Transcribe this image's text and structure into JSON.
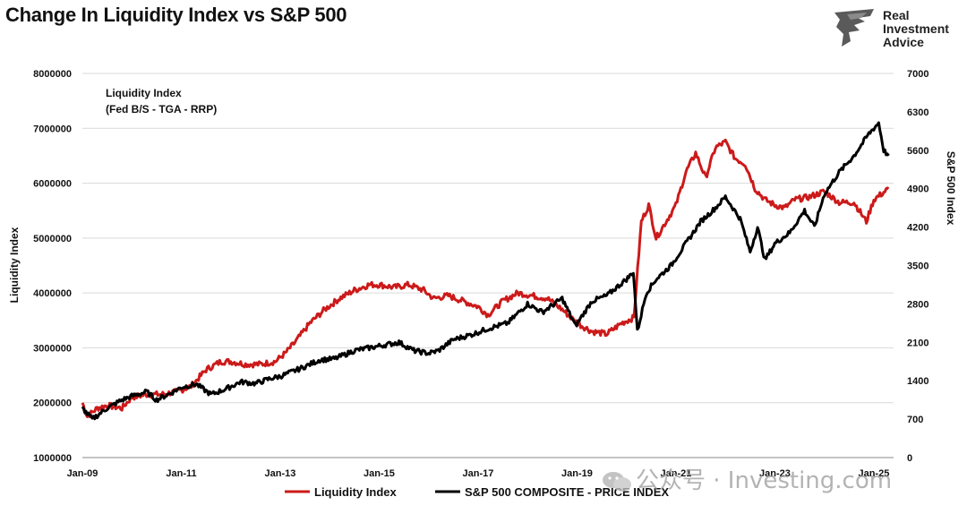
{
  "header": {
    "title": "Change In Liquidity Index vs S&P 500"
  },
  "brand": {
    "line1": "Real",
    "line2": "Investment",
    "line3": "Advice"
  },
  "watermark": {
    "text": "公众号 · Investing.com"
  },
  "colors": {
    "liquidity": "#cc1a1a",
    "sp500": "#000000",
    "axis": "#222222",
    "grid": "#d9d9d9"
  },
  "chart_data": {
    "type": "line",
    "annotation": {
      "line1": "Liquidity Index",
      "line2": "(Fed B/S - TGA - RRP)"
    },
    "ylabel": "Liquidity Index",
    "y2label": "S&P 500 Index",
    "ylim": [
      1000000,
      8000000
    ],
    "y2lim": [
      0,
      7000
    ],
    "yticks": [
      "1000000",
      "2000000",
      "3000000",
      "4000000",
      "5000000",
      "6000000",
      "7000000",
      "8000000"
    ],
    "y2ticks": [
      "0",
      "700",
      "1400",
      "2100",
      "2800",
      "3500",
      "4200",
      "4900",
      "5600",
      "6300",
      "7000"
    ],
    "xticks": [
      "Jan-09",
      "Jan-11",
      "Jan-13",
      "Jan-15",
      "Jan-17",
      "Jan-19",
      "Jan-21",
      "Jan-23",
      "Jan-25"
    ],
    "xlim": [
      2009.0,
      2025.4
    ],
    "legend": {
      "placement": "bottom"
    },
    "grid": true,
    "series": [
      {
        "name": "Liquidity Index",
        "axis": "left",
        "points": [
          [
            2009.0,
            2000000
          ],
          [
            2009.1,
            1750000
          ],
          [
            2009.3,
            1900000
          ],
          [
            2009.5,
            1950000
          ],
          [
            2009.8,
            1900000
          ],
          [
            2010.0,
            2100000
          ],
          [
            2010.3,
            2150000
          ],
          [
            2010.6,
            2150000
          ],
          [
            2010.9,
            2200000
          ],
          [
            2011.2,
            2300000
          ],
          [
            2011.5,
            2600000
          ],
          [
            2011.8,
            2750000
          ],
          [
            2012.0,
            2750000
          ],
          [
            2012.3,
            2700000
          ],
          [
            2012.6,
            2700000
          ],
          [
            2012.9,
            2750000
          ],
          [
            2013.1,
            2900000
          ],
          [
            2013.3,
            3100000
          ],
          [
            2013.6,
            3450000
          ],
          [
            2013.9,
            3700000
          ],
          [
            2014.2,
            3900000
          ],
          [
            2014.5,
            4050000
          ],
          [
            2014.8,
            4150000
          ],
          [
            2015.0,
            4150000
          ],
          [
            2015.3,
            4100000
          ],
          [
            2015.6,
            4150000
          ],
          [
            2015.9,
            4050000
          ],
          [
            2016.1,
            3900000
          ],
          [
            2016.4,
            3950000
          ],
          [
            2016.7,
            3850000
          ],
          [
            2017.0,
            3750000
          ],
          [
            2017.2,
            3600000
          ],
          [
            2017.5,
            3850000
          ],
          [
            2017.8,
            4000000
          ],
          [
            2018.1,
            3950000
          ],
          [
            2018.4,
            3900000
          ],
          [
            2018.7,
            3700000
          ],
          [
            2019.0,
            3450000
          ],
          [
            2019.3,
            3300000
          ],
          [
            2019.6,
            3250000
          ],
          [
            2019.9,
            3450000
          ],
          [
            2020.15,
            3550000
          ],
          [
            2020.3,
            5300000
          ],
          [
            2020.45,
            5600000
          ],
          [
            2020.6,
            5000000
          ],
          [
            2020.8,
            5300000
          ],
          [
            2021.0,
            5600000
          ],
          [
            2021.2,
            6200000
          ],
          [
            2021.4,
            6550000
          ],
          [
            2021.6,
            6100000
          ],
          [
            2021.8,
            6650000
          ],
          [
            2022.0,
            6750000
          ],
          [
            2022.2,
            6450000
          ],
          [
            2022.4,
            6350000
          ],
          [
            2022.6,
            5900000
          ],
          [
            2022.8,
            5700000
          ],
          [
            2023.0,
            5600000
          ],
          [
            2023.2,
            5550000
          ],
          [
            2023.4,
            5700000
          ],
          [
            2023.7,
            5750000
          ],
          [
            2024.0,
            5850000
          ],
          [
            2024.3,
            5650000
          ],
          [
            2024.6,
            5650000
          ],
          [
            2024.85,
            5300000
          ],
          [
            2025.0,
            5700000
          ],
          [
            2025.3,
            5900000
          ]
        ]
      },
      {
        "name": "S&P 500 COMPOSITE - PRICE INDEX",
        "axis": "right",
        "points": [
          [
            2009.0,
            900
          ],
          [
            2009.2,
            700
          ],
          [
            2009.5,
            900
          ],
          [
            2009.8,
            1050
          ],
          [
            2010.0,
            1120
          ],
          [
            2010.3,
            1200
          ],
          [
            2010.5,
            1050
          ],
          [
            2010.8,
            1180
          ],
          [
            2011.0,
            1280
          ],
          [
            2011.3,
            1340
          ],
          [
            2011.6,
            1150
          ],
          [
            2011.9,
            1250
          ],
          [
            2012.2,
            1380
          ],
          [
            2012.5,
            1350
          ],
          [
            2012.8,
            1440
          ],
          [
            2013.0,
            1480
          ],
          [
            2013.4,
            1620
          ],
          [
            2013.8,
            1780
          ],
          [
            2014.1,
            1800
          ],
          [
            2014.5,
            1950
          ],
          [
            2014.8,
            2000
          ],
          [
            2015.1,
            2050
          ],
          [
            2015.4,
            2100
          ],
          [
            2015.7,
            1950
          ],
          [
            2016.0,
            1900
          ],
          [
            2016.2,
            1950
          ],
          [
            2016.5,
            2150
          ],
          [
            2016.9,
            2250
          ],
          [
            2017.2,
            2350
          ],
          [
            2017.6,
            2450
          ],
          [
            2018.0,
            2800
          ],
          [
            2018.3,
            2650
          ],
          [
            2018.7,
            2900
          ],
          [
            2018.97,
            2400
          ],
          [
            2019.3,
            2850
          ],
          [
            2019.6,
            2950
          ],
          [
            2020.0,
            3250
          ],
          [
            2020.14,
            3380
          ],
          [
            2020.22,
            2300
          ],
          [
            2020.4,
            3000
          ],
          [
            2020.6,
            3250
          ],
          [
            2020.9,
            3500
          ],
          [
            2021.2,
            3900
          ],
          [
            2021.5,
            4300
          ],
          [
            2021.8,
            4550
          ],
          [
            2022.0,
            4750
          ],
          [
            2022.3,
            4350
          ],
          [
            2022.5,
            3750
          ],
          [
            2022.65,
            4200
          ],
          [
            2022.8,
            3600
          ],
          [
            2023.0,
            3900
          ],
          [
            2023.3,
            4100
          ],
          [
            2023.6,
            4500
          ],
          [
            2023.8,
            4200
          ],
          [
            2024.0,
            4800
          ],
          [
            2024.3,
            5200
          ],
          [
            2024.6,
            5500
          ],
          [
            2024.9,
            5900
          ],
          [
            2025.1,
            6100
          ],
          [
            2025.2,
            5600
          ],
          [
            2025.3,
            5500
          ]
        ]
      }
    ]
  }
}
